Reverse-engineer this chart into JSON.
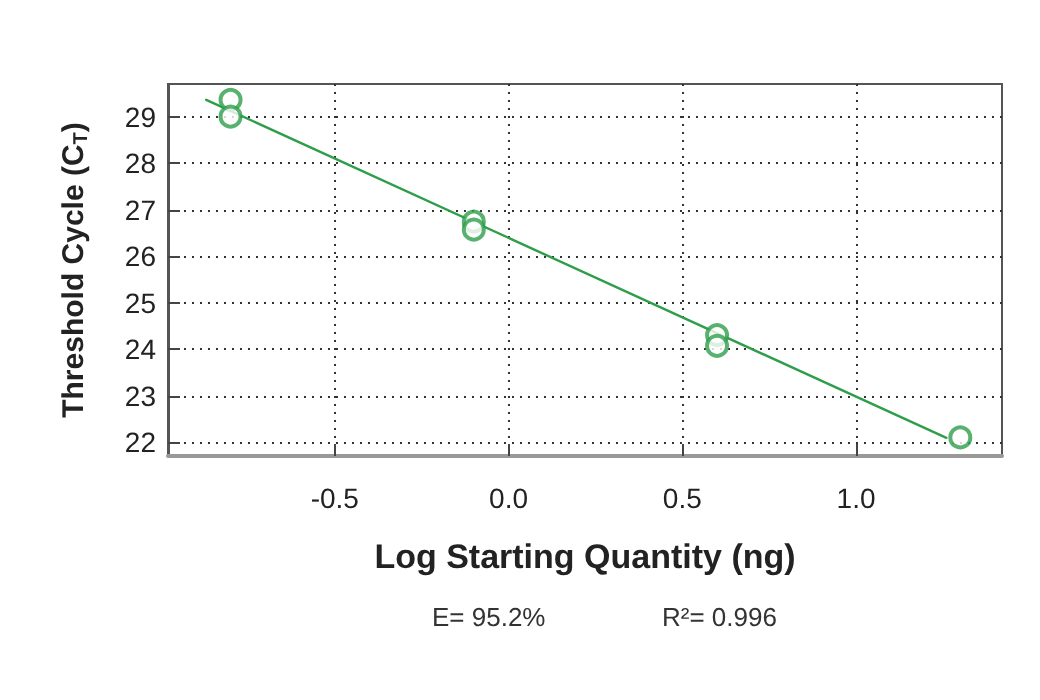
{
  "chart_data": {
    "type": "scatter",
    "xlabel": "Log Starting Quantity (ng)",
    "ylabel": "Threshold Cycle (C$_{T}$)",
    "xlim": [
      -0.98,
      1.42
    ],
    "ylim": [
      21.7,
      29.7
    ],
    "xticks": [
      -0.5,
      {
        "value": 0,
        "label": "0.0"
      },
      0.5,
      {
        "value": 1,
        "label": "1.0"
      }
    ],
    "yticks": [
      22,
      23,
      24,
      25,
      26,
      27,
      28,
      29
    ],
    "grid": true,
    "series": [
      {
        "color": "#2e9e4a",
        "marker": "circle",
        "x": [
          -0.8,
          -0.8,
          -0.1,
          -0.1,
          0.6,
          0.6,
          1.3
        ],
        "values": [
          29.36,
          29.0,
          26.74,
          26.57,
          24.3,
          24.07,
          22.1
        ]
      },
      {
        "type": "line",
        "color": "#2e9e4a",
        "marker": "none",
        "line_style": "solid",
        "x": [
          -0.87,
          1.26
        ],
        "values": [
          29.36,
          22.09
        ]
      }
    ],
    "annotations": [
      "E= 95.2%",
      "R²= 0.996"
    ]
  }
}
